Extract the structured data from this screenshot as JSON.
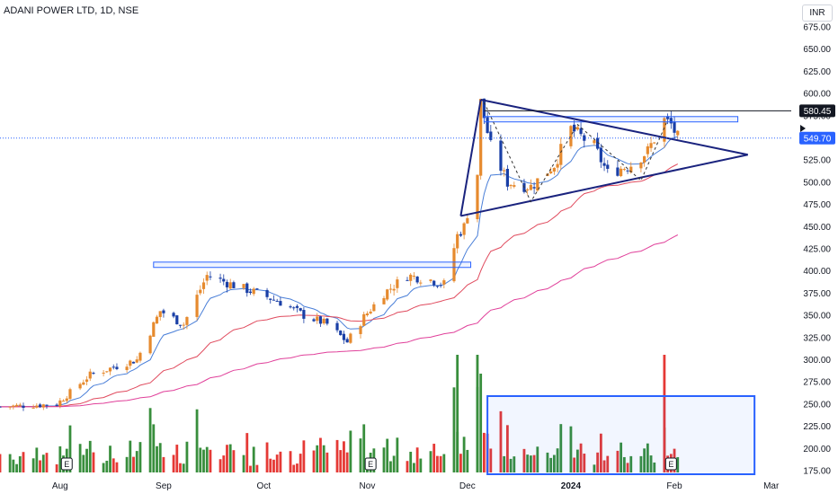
{
  "header": {
    "title": "ADANI POWER LTD, 1D, NSE",
    "currency": "INR"
  },
  "price_labels": {
    "last": "549.70",
    "high": "580.45"
  },
  "event_marker": "E",
  "colors": {
    "up": "#388e3c",
    "down": "#e53935",
    "candle_up": "#e68a2e",
    "candle_down": "#1a3fa6",
    "ma_fast": "#4a7fd8",
    "ma_mid": "#e04b5e",
    "ma_slow": "#e0409a",
    "pattern_lines": "#1a237e",
    "box": "#2962ff",
    "last_price": "#2962ff"
  },
  "chart_data": {
    "type": "candlestick",
    "title": "ADANI POWER LTD, 1D, NSE",
    "currency": "INR",
    "y_ticks": [
      175,
      200,
      225,
      250,
      275,
      300,
      325,
      350,
      375,
      400,
      425,
      450,
      475,
      500,
      525,
      550,
      575,
      600,
      625,
      650,
      675
    ],
    "ylim": [
      175,
      675
    ],
    "x_ticks": [
      "Aug",
      "Sep",
      "Oct",
      "Nov",
      "Dec",
      "2024",
      "Feb",
      "Mar"
    ],
    "x_range": [
      "2023-07-14",
      "2024-03-07"
    ],
    "last_price": 549.7,
    "high_level": 580.45,
    "closes": [
      {
        "d": "2023-07-14",
        "c": 247
      },
      {
        "d": "2023-07-31",
        "c": 250
      },
      {
        "d": "2023-08-10",
        "c": 283
      },
      {
        "d": "2023-08-24",
        "c": 300
      },
      {
        "d": "2023-08-31",
        "c": 355
      },
      {
        "d": "2023-09-07",
        "c": 340
      },
      {
        "d": "2023-09-14",
        "c": 395
      },
      {
        "d": "2023-09-22",
        "c": 384
      },
      {
        "d": "2023-09-29",
        "c": 375
      },
      {
        "d": "2023-10-06",
        "c": 365
      },
      {
        "d": "2023-10-13",
        "c": 350
      },
      {
        "d": "2023-10-20",
        "c": 340
      },
      {
        "d": "2023-10-26",
        "c": 320
      },
      {
        "d": "2023-10-31",
        "c": 348
      },
      {
        "d": "2023-11-06",
        "c": 375
      },
      {
        "d": "2023-11-13",
        "c": 395
      },
      {
        "d": "2023-11-20",
        "c": 390
      },
      {
        "d": "2023-11-24",
        "c": 385
      },
      {
        "d": "2023-11-28",
        "c": 440
      },
      {
        "d": "2023-11-30",
        "c": 450
      },
      {
        "d": "2023-12-04",
        "c": 510
      },
      {
        "d": "2023-12-05",
        "c": 590
      },
      {
        "d": "2023-12-08",
        "c": 540
      },
      {
        "d": "2023-12-13",
        "c": 500
      },
      {
        "d": "2023-12-20",
        "c": 495
      },
      {
        "d": "2023-12-27",
        "c": 520
      },
      {
        "d": "2024-01-01",
        "c": 560
      },
      {
        "d": "2024-01-08",
        "c": 540
      },
      {
        "d": "2024-01-12",
        "c": 510
      },
      {
        "d": "2024-01-19",
        "c": 520
      },
      {
        "d": "2024-01-24",
        "c": 535
      },
      {
        "d": "2024-01-29",
        "c": 570
      },
      {
        "d": "2024-01-31",
        "c": 565
      },
      {
        "d": "2024-02-02",
        "c": 550
      }
    ],
    "volume_highlights": [
      "2023-11-28",
      "2023-12-04",
      "2024-01-29"
    ],
    "earnings_markers": [
      "2023-08-03",
      "2023-11-02",
      "2024-01-31"
    ],
    "indicators": [
      "EMA fast",
      "EMA mid",
      "EMA long"
    ],
    "patterns": [
      "symmetrical triangle",
      "resistance zone near 405-410",
      "resistance zone near 565-570"
    ]
  }
}
